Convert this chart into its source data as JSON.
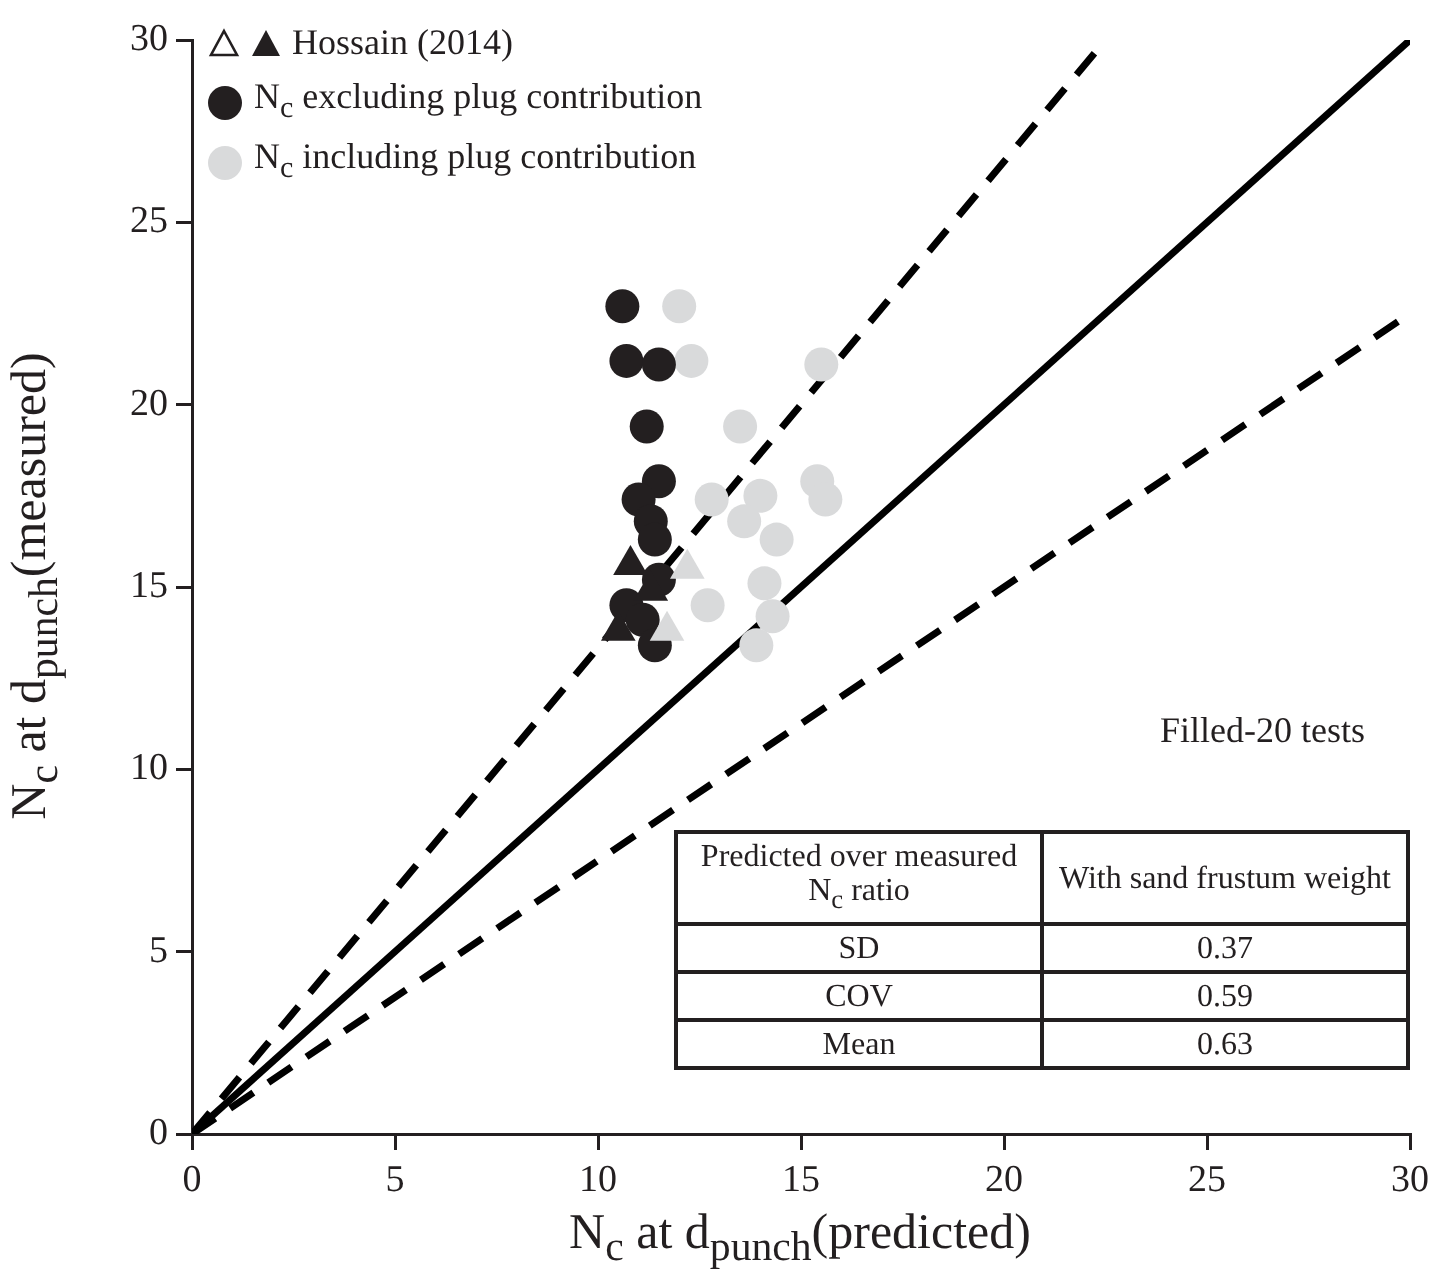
{
  "chart_data": {
    "type": "scatter",
    "xlabel": "N$_{c}$ at d$_{punch}$(predicted)",
    "ylabel": "N$_{c}$ at d$_{punch}$(measured)",
    "xlim": [
      0,
      30
    ],
    "ylim": [
      0,
      30
    ],
    "xticks": [
      0,
      5,
      10,
      15,
      20,
      25,
      30
    ],
    "yticks": [
      0,
      5,
      10,
      15,
      20,
      25,
      30
    ],
    "grid": false,
    "legend": "top left",
    "series": [
      {
        "name": "Hossain (2014)",
        "color": "#231f20",
        "marker": "triangle",
        "x": [
          10.8,
          10.5,
          11.3
        ],
        "values": [
          15.6,
          13.8,
          14.9
        ]
      },
      {
        "color": "#d9dadb",
        "marker": "triangle",
        "x": [
          12.2,
          11.7
        ],
        "values": [
          15.5,
          13.8
        ]
      },
      {
        "name": "N$_{c}$ excluding plug contribution",
        "color": "#231f20",
        "marker": "circle",
        "x": [
          10.6,
          10.7,
          11.5,
          11.2,
          11.5,
          11.0,
          11.3,
          11.4,
          11.5,
          10.7,
          11.1,
          11.4
        ],
        "values": [
          22.7,
          21.2,
          21.1,
          19.4,
          17.9,
          17.4,
          16.8,
          16.3,
          15.2,
          14.5,
          14.1,
          13.4
        ]
      },
      {
        "name": "N$_{c}$ including plug contribution",
        "color": "#d9dadb",
        "marker": "circle",
        "x": [
          12.0,
          12.3,
          15.5,
          13.5,
          15.4,
          15.6,
          12.8,
          14.0,
          13.6,
          14.4,
          14.1,
          12.7,
          14.3,
          13.9
        ],
        "values": [
          22.7,
          21.2,
          21.1,
          19.4,
          17.9,
          17.4,
          17.4,
          17.5,
          16.8,
          16.3,
          15.1,
          14.5,
          14.2,
          13.4
        ]
      },
      {
        "type": "line",
        "color": "#000000",
        "line_style": "solid",
        "marker": "none",
        "x": [
          0,
          30
        ],
        "values": [
          0,
          30
        ]
      },
      {
        "type": "line",
        "color": "#000000",
        "line_style": "dashed",
        "marker": "none",
        "x": [
          0,
          22.5
        ],
        "values": [
          0,
          30
        ]
      },
      {
        "type": "line",
        "color": "#000000",
        "line_style": "dashed",
        "marker": "none",
        "x": [
          0,
          30
        ],
        "values": [
          0,
          22.5
        ]
      }
    ],
    "annotations": [
      "Filled-20 tests",
      "Predicted over measured N$_{c}$ ratio",
      "With sand frustum weight",
      "SD",
      "0.37",
      "COV",
      "0.59",
      "Mean",
      "0.63"
    ]
  }
}
